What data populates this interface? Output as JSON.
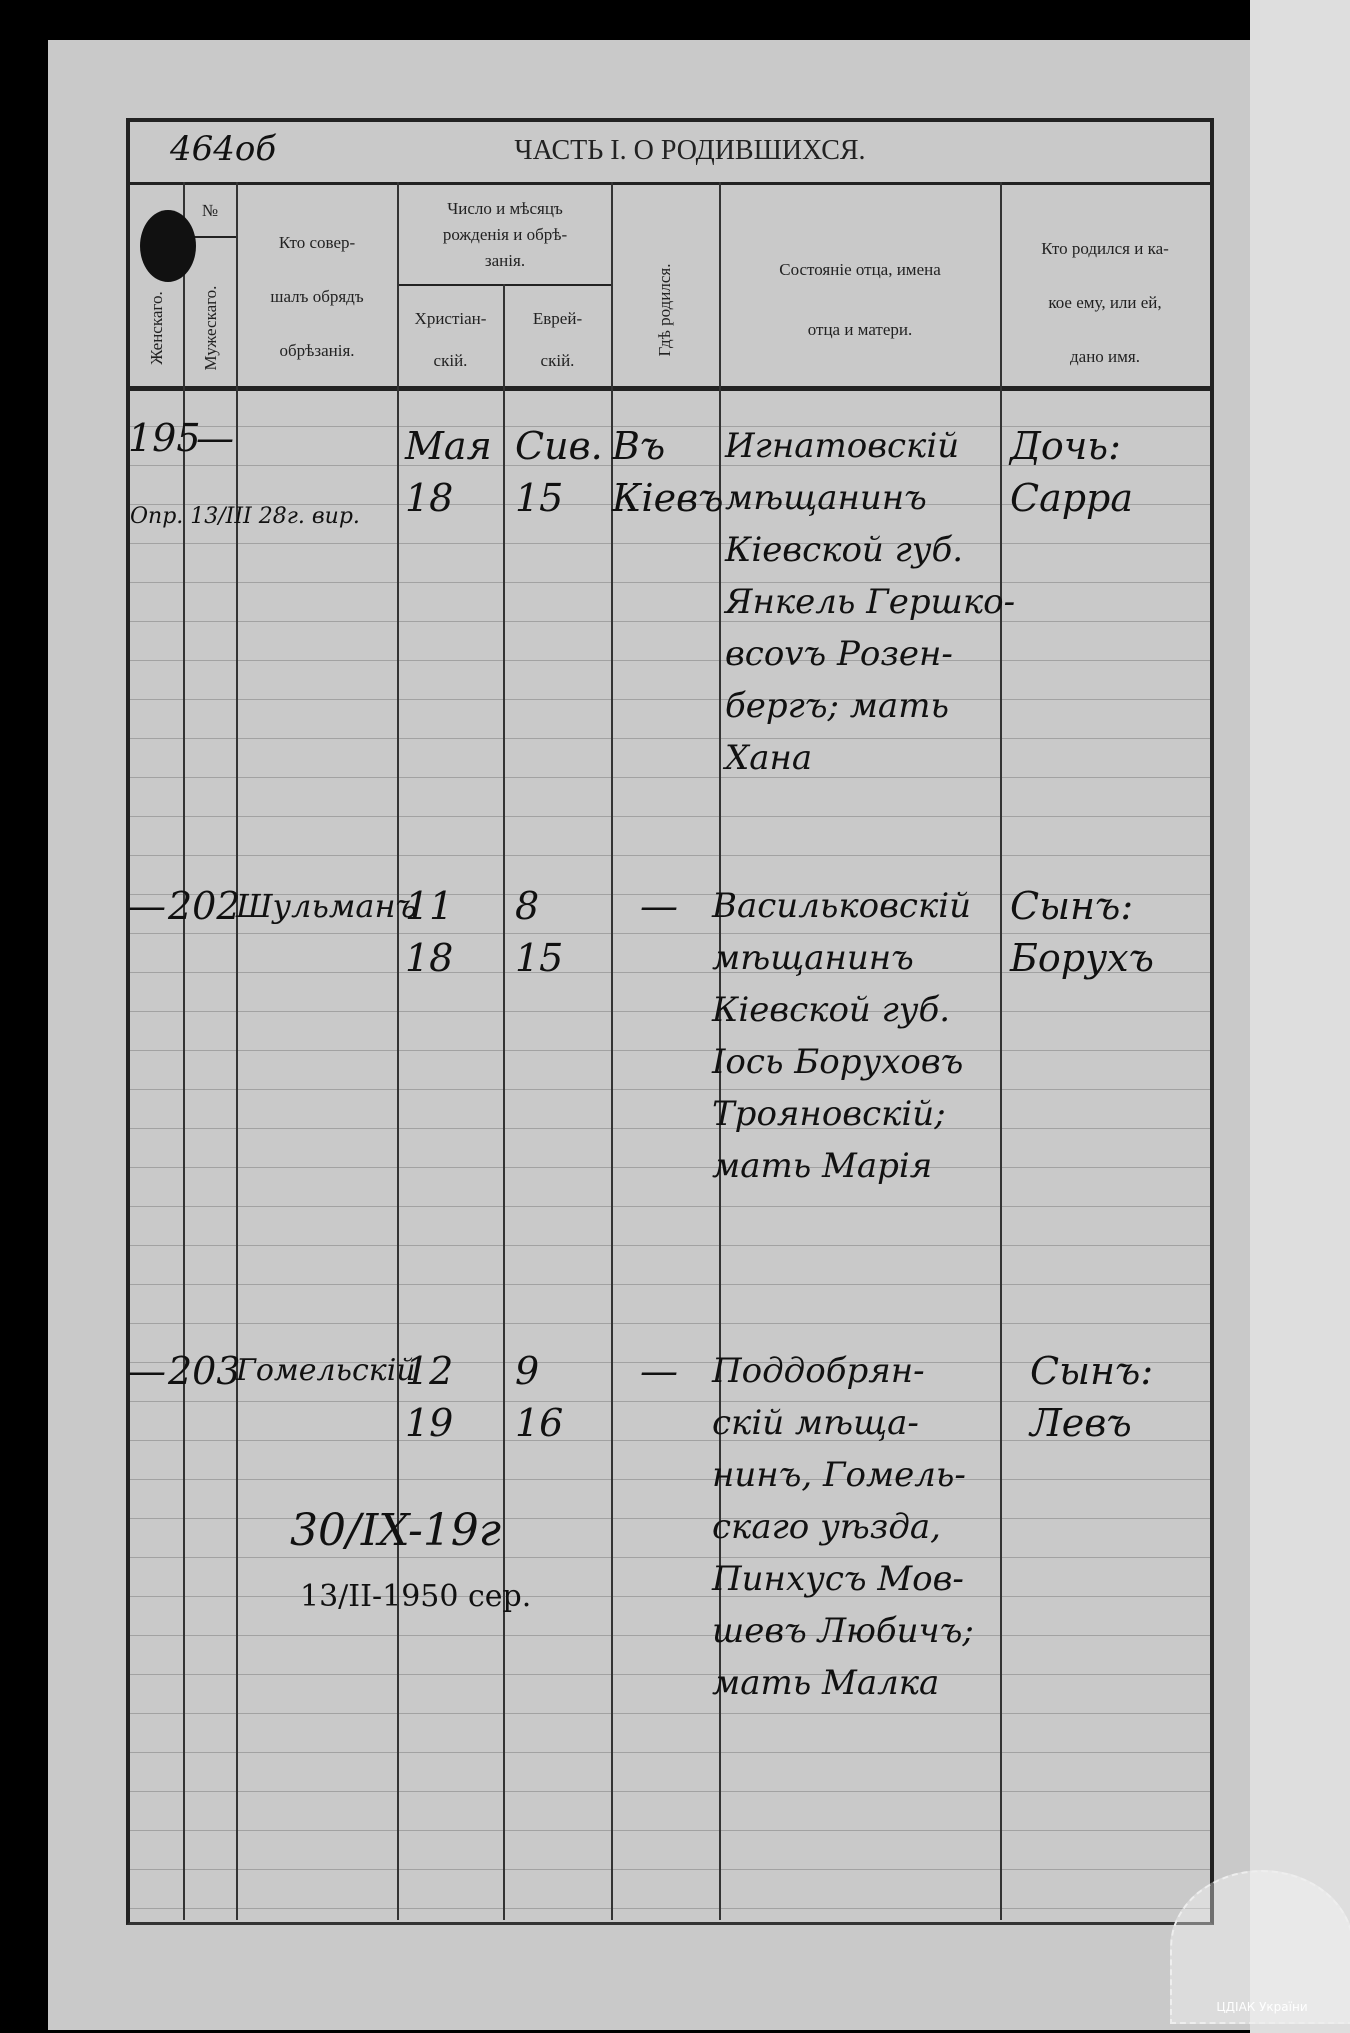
{
  "page": {
    "folio_note": "464об"
  },
  "table": {
    "title": "ЧАСТЬ I. О РОДИВШИХСЯ.",
    "headers": {
      "number": "№",
      "female": "Женскаго.",
      "male": "Мужескаго.",
      "circumciser": [
        "Кто совер-",
        "шалъ обрядъ",
        "обрѣзанія."
      ],
      "date_group": [
        "Число и мѣсяцъ",
        "рожденія и обрѣ-",
        "занія."
      ],
      "christian": [
        "Христіан-",
        "скій."
      ],
      "jewish": [
        "Еврей-",
        "скій."
      ],
      "birthplace": "Гдѣ родился.",
      "parents": [
        "Состояніе отца, имена",
        "отца и матери."
      ],
      "child": [
        "Кто родился и ка-",
        "кое ему, или ей,",
        "дано имя."
      ]
    },
    "rows": [
      {
        "female": "195",
        "male": "—",
        "margin_note": "Опр. 13/III 28г. вир.",
        "circumciser": "",
        "christian": [
          "Мая",
          "18"
        ],
        "jewish": [
          "Сив.",
          "15"
        ],
        "place": [
          "Въ",
          "Кіевъ"
        ],
        "parents": [
          "Игнатовскій",
          "мѣщанинъ",
          "Кіевской губ.",
          "Янкель Гершко-",
          "вcovъ Розен-",
          "бергъ; мать",
          "Хана"
        ],
        "child": [
          "Дочь:",
          "Сарра"
        ]
      },
      {
        "female": "—",
        "male": "202",
        "margin_note": "",
        "circumciser": "Шульманъ",
        "christian": [
          "11",
          "18"
        ],
        "jewish": [
          "8",
          "15"
        ],
        "place": [
          "—"
        ],
        "parents": [
          "Васильковскій",
          "мѣщанинъ",
          "Кіевской губ.",
          "Іось Боруховъ",
          "Трояновскій;",
          "мать Марія"
        ],
        "child": [
          "Сынъ:",
          "Борухъ"
        ]
      },
      {
        "female": "—",
        "male": "203",
        "margin_note": "",
        "circumciser": "Гомельскій",
        "christian": [
          "12",
          "19"
        ],
        "jewish": [
          "9",
          "16"
        ],
        "place": [
          "—"
        ],
        "parents": [
          "Поддобрян-",
          "скій мѣща-",
          "нинъ, Гомель-",
          "скаго уѣзда,",
          "Пинхусъ Мов-",
          "шевъ Любичъ;",
          "мать Малка"
        ],
        "child": [
          "Сынъ:",
          "Левъ"
        ]
      }
    ],
    "annotations": [
      "30/IX-19г",
      "13/II-1950 сер."
    ]
  },
  "watermark": {
    "text": "ЦДІАК України"
  }
}
